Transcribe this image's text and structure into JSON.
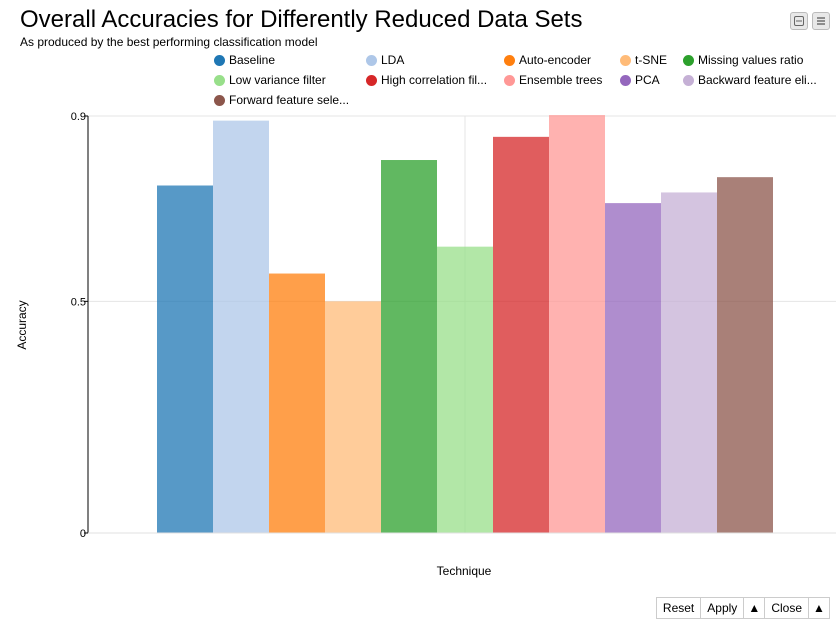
{
  "header": {
    "title": "Overall Accuracies for Differently Reduced Data Sets",
    "subtitle": "As produced by the best performing classification model"
  },
  "toolbar_icons": [
    "minimize-icon",
    "menu-icon"
  ],
  "footer": {
    "reset_label": "Reset",
    "apply_label": "Apply",
    "close_label": "Close",
    "arrow_label": "▲"
  },
  "chart_data": {
    "type": "bar",
    "title": "Overall Accuracies for Differently Reduced Data Sets",
    "subtitle": "As produced by the best performing classification model",
    "xlabel": "Technique",
    "ylabel": "Accuracy",
    "ylim": [
      0,
      0.9
    ],
    "yticks": [
      "0",
      "0.5",
      "0.9"
    ],
    "grid": true,
    "legend_position": "top",
    "series": [
      {
        "name": "Baseline",
        "legend_label": "Baseline",
        "value": 0.75,
        "color": "#1f77b4"
      },
      {
        "name": "LDA",
        "legend_label": "LDA",
        "value": 0.89,
        "color": "#aec7e8"
      },
      {
        "name": "Auto-encoder",
        "legend_label": "Auto-encoder",
        "value": 0.56,
        "color": "#ff7f0e"
      },
      {
        "name": "t-SNE",
        "legend_label": "t-SNE",
        "value": 0.5,
        "color": "#ffbb78"
      },
      {
        "name": "Missing values ratio",
        "legend_label": "Missing values ratio",
        "value": 0.805,
        "color": "#2ca02c"
      },
      {
        "name": "Low variance filter",
        "legend_label": "Low variance filter",
        "value": 0.618,
        "color": "#98df8a"
      },
      {
        "name": "High correlation filter",
        "legend_label": "High correlation fil...",
        "value": 0.855,
        "color": "#d62728"
      },
      {
        "name": "Ensemble trees",
        "legend_label": "Ensemble trees",
        "value": 0.902,
        "color": "#ff9896"
      },
      {
        "name": "PCA",
        "legend_label": "PCA",
        "value": 0.712,
        "color": "#9467bd"
      },
      {
        "name": "Backward feature elimination",
        "legend_label": "Backward feature eli...",
        "value": 0.735,
        "color": "#c5b0d5"
      },
      {
        "name": "Forward feature selection",
        "legend_label": "Forward feature sele...",
        "value": 0.768,
        "color": "#8c564b"
      }
    ]
  }
}
